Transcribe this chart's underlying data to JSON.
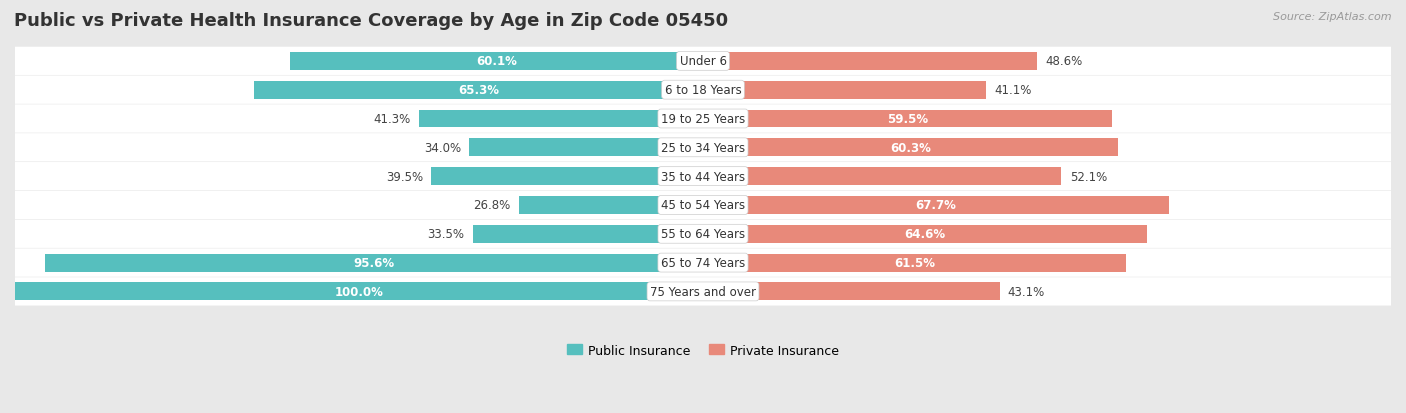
{
  "title": "Public vs Private Health Insurance Coverage by Age in Zip Code 05450",
  "source": "Source: ZipAtlas.com",
  "categories": [
    "Under 6",
    "6 to 18 Years",
    "19 to 25 Years",
    "25 to 34 Years",
    "35 to 44 Years",
    "45 to 54 Years",
    "55 to 64 Years",
    "65 to 74 Years",
    "75 Years and over"
  ],
  "public_values": [
    60.1,
    65.3,
    41.3,
    34.0,
    39.5,
    26.8,
    33.5,
    95.6,
    100.0
  ],
  "private_values": [
    48.6,
    41.1,
    59.5,
    60.3,
    52.1,
    67.7,
    64.6,
    61.5,
    43.1
  ],
  "public_color": "#56bfbe",
  "private_color": "#e8897a",
  "public_label": "Public Insurance",
  "private_label": "Private Insurance",
  "bar_height": 0.62,
  "bg_color": "#e8e8e8",
  "row_bg_color": "#ffffff",
  "gap_color": "#d8d8d8",
  "title_fontsize": 13,
  "source_fontsize": 8,
  "value_fontsize": 8.5,
  "category_fontsize": 8.5,
  "legend_fontsize": 9,
  "axis_label_fontsize": 9
}
